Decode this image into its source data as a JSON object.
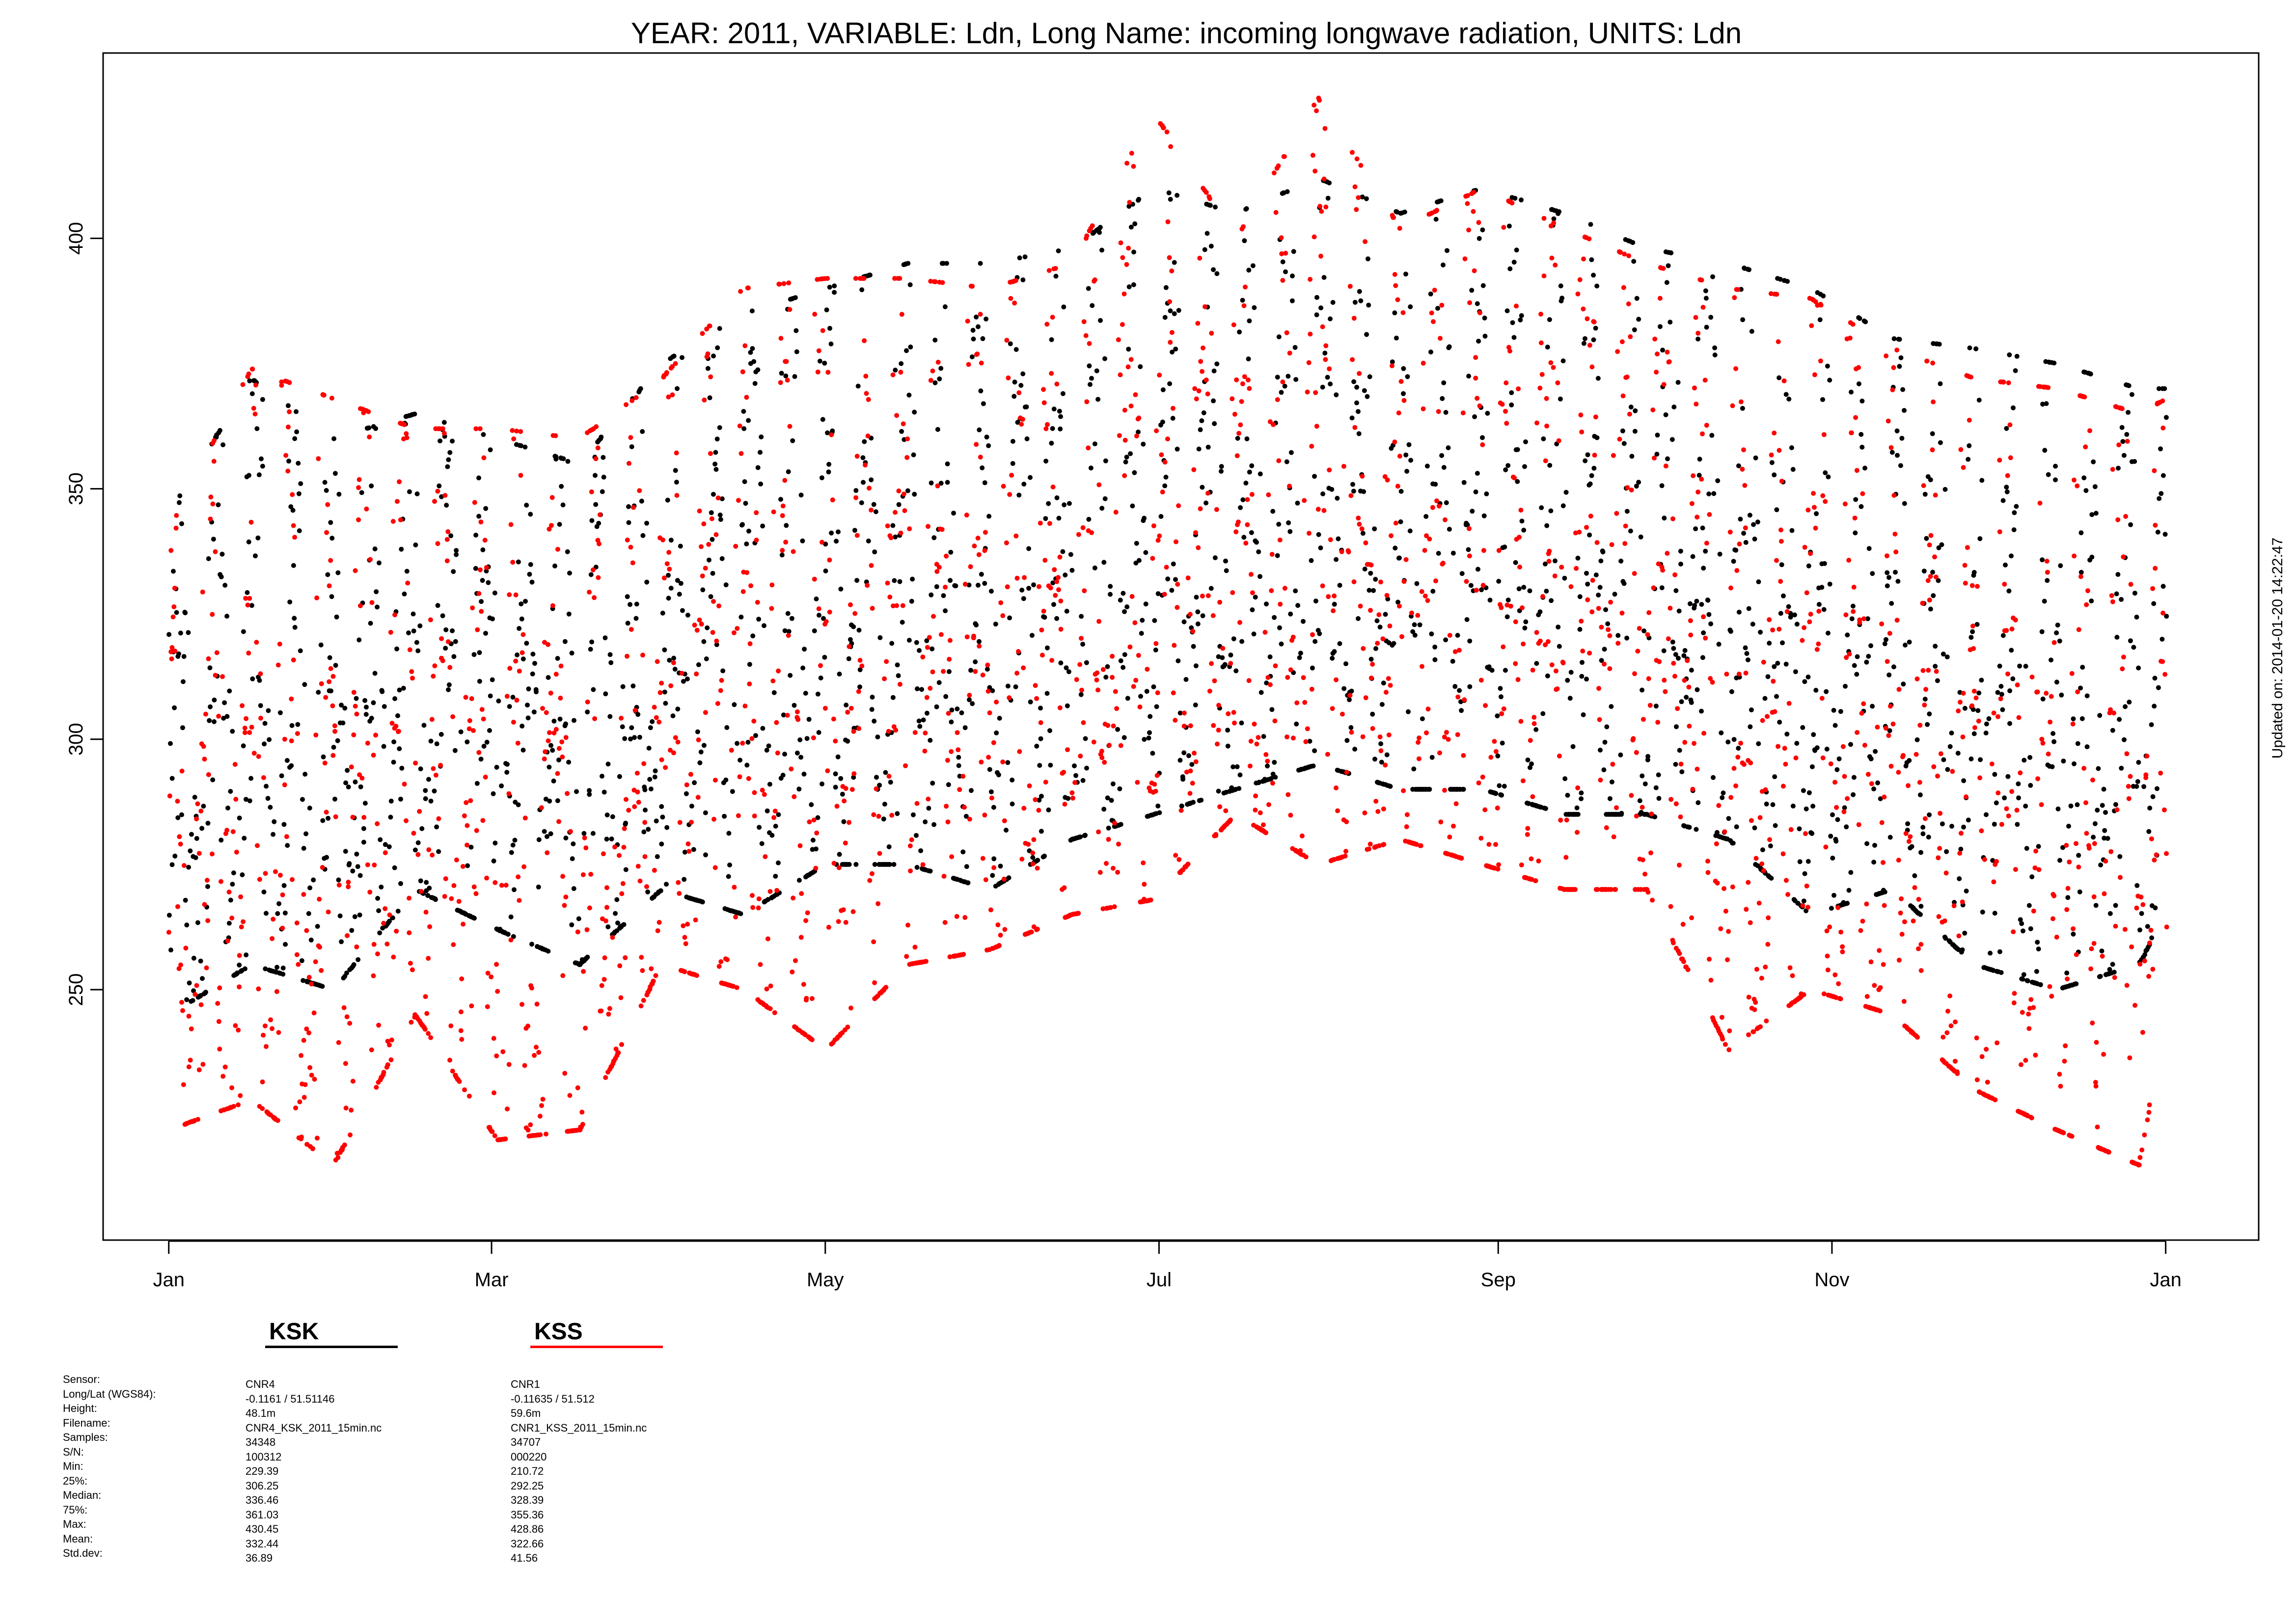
{
  "chart_data": {
    "type": "scatter",
    "title": "YEAR: 2011, VARIABLE: Ldn, Long Name: incoming  longwave  radiation, UNITS: Ldn",
    "xlabel": "",
    "ylabel": "",
    "x_ticks": [
      "Jan",
      "Mar",
      "May",
      "Jul",
      "Sep",
      "Nov",
      "Jan"
    ],
    "x_tick_days": [
      0,
      59,
      120,
      181,
      243,
      304,
      365
    ],
    "xlim": [
      -12,
      382
    ],
    "y_ticks": [
      250,
      300,
      350,
      400
    ],
    "ylim": [
      200,
      437
    ],
    "grid": false,
    "legend_position": "bottom-left",
    "series": [
      {
        "name": "KSK",
        "color": "#000000",
        "envelope": {
          "days": [
            0,
            15,
            30,
            45,
            60,
            75,
            90,
            105,
            120,
            135,
            150,
            165,
            180,
            195,
            210,
            225,
            240,
            255,
            270,
            285,
            300,
            315,
            330,
            345,
            360,
            365
          ],
          "low": [
            245,
            255,
            250,
            270,
            262,
            255,
            270,
            265,
            275,
            275,
            270,
            280,
            285,
            290,
            295,
            290,
            290,
            285,
            285,
            280,
            265,
            270,
            255,
            250,
            255,
            265
          ],
          "high": [
            345,
            372,
            360,
            365,
            360,
            355,
            375,
            385,
            390,
            395,
            395,
            398,
            410,
            405,
            412,
            405,
            410,
            405,
            398,
            395,
            390,
            380,
            378,
            375,
            370,
            370
          ]
        }
      },
      {
        "name": "KSS",
        "color": "#ff0000",
        "envelope": {
          "days": [
            0,
            15,
            30,
            45,
            60,
            75,
            90,
            105,
            120,
            135,
            150,
            165,
            180,
            195,
            210,
            225,
            240,
            255,
            270,
            285,
            300,
            315,
            330,
            345,
            360,
            365
          ],
          "low": [
            222,
            228,
            215,
            245,
            220,
            222,
            255,
            250,
            238,
            255,
            258,
            265,
            268,
            285,
            275,
            280,
            275,
            270,
            270,
            238,
            250,
            245,
            230,
            222,
            215,
            245
          ],
          "high": [
            342,
            374,
            368,
            362,
            362,
            360,
            372,
            390,
            392,
            392,
            390,
            395,
            425,
            400,
            428,
            402,
            410,
            402,
            395,
            390,
            388,
            378,
            372,
            370,
            365,
            368
          ]
        }
      }
    ]
  },
  "side_note": "Updated on: 2014-01-20 14:22:47",
  "legend": {
    "items": [
      {
        "name": "KSK",
        "color": "#000000"
      },
      {
        "name": "KSS",
        "color": "#ff0000"
      }
    ]
  },
  "stats": {
    "labels": [
      "Sensor:",
      "Long/Lat (WGS84):",
      "Height:",
      "Filename:",
      "Samples:",
      "S/N:",
      "Min:",
      "25%:",
      "Median:",
      "75%:",
      "Max:",
      "Mean:",
      "Std.dev:"
    ],
    "ksk": [
      "CNR4",
      "-0.1161 / 51.51146",
      "48.1m",
      "CNR4_KSK_2011_15min.nc",
      "34348",
      "100312",
      "229.39",
      "306.25",
      "336.46",
      "361.03",
      "430.45",
      "332.44",
      "36.89"
    ],
    "kss": [
      "CNR1",
      "-0.11635 / 51.512",
      "59.6m",
      "CNR1_KSS_2011_15min.nc",
      "34707",
      "000220",
      "210.72",
      "292.25",
      "328.39",
      "355.36",
      "428.86",
      "322.66",
      "41.56"
    ]
  }
}
